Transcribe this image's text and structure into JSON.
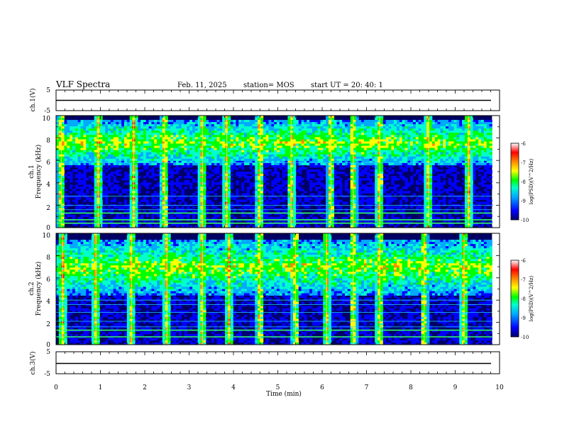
{
  "header": {
    "title": "VLF Spectra",
    "date": "Feb. 11, 2025",
    "station": "station= MOS",
    "start": "start  UT =   20: 40: 1"
  },
  "chart_data": {
    "type": "heatmap",
    "xlabel": "Time  (min)",
    "xlim": [
      0,
      10
    ],
    "xticks": [
      "0",
      "1",
      "2",
      "3",
      "4",
      "5",
      "6",
      "7",
      "8",
      "9",
      "10"
    ],
    "data_end_min": 9.83,
    "panels": [
      {
        "name": "ch1-voltage",
        "ylabel": "ch.1(V)",
        "ylim": [
          -5,
          5
        ],
        "yticks": [
          "5",
          "-5"
        ],
        "type": "line",
        "level": 0
      },
      {
        "name": "ch1-spectrogram",
        "ylabel": "ch.1",
        "ylabel2": "Frequency  (kHz)",
        "ylim": [
          0,
          10
        ],
        "yticks": [
          "0",
          "2",
          "4",
          "6",
          "8",
          "10"
        ],
        "type": "heatmap",
        "main_band_khz": [
          5.5,
          9.6
        ],
        "lines_khz": [
          0.4,
          0.7,
          1.3,
          1.6,
          2.0,
          2.8,
          5.8
        ],
        "strong_events_min": [
          0.12,
          0.95,
          1.75,
          2.45,
          3.3,
          3.85,
          4.6,
          5.3,
          6.2,
          6.7,
          7.3,
          8.4,
          9.3
        ]
      },
      {
        "name": "ch2-spectrogram",
        "ylabel": "ch.2",
        "ylabel2": "Frequency  (kHz)",
        "ylim": [
          0,
          10
        ],
        "yticks": [
          "0",
          "2",
          "4",
          "6",
          "8",
          "10"
        ],
        "type": "heatmap",
        "main_band_khz": [
          4.5,
          9.4
        ],
        "lines_khz": [
          0.7,
          1.3,
          1.6,
          2.1,
          2.9,
          3.6,
          4.0
        ],
        "strong_events_min": [
          0.15,
          0.9,
          1.7,
          2.5,
          3.3,
          3.9,
          4.6,
          5.4,
          6.1,
          6.7,
          7.3,
          8.3,
          9.2
        ]
      },
      {
        "name": "ch3-voltage",
        "ylabel": "ch.3(V)",
        "ylim": [
          -5,
          5
        ],
        "yticks": [
          "5",
          "-5"
        ],
        "type": "line",
        "level": 0
      }
    ],
    "colorbar": {
      "label": "log(PSD)(V^2/Hz)",
      "range": [
        -10,
        -6
      ],
      "ticks": [
        "-6",
        "-7",
        "-8",
        "-9",
        "-10"
      ],
      "colors": [
        "#000066",
        "#0000ff",
        "#00aaff",
        "#00ffcc",
        "#00ff00",
        "#ffff00",
        "#ff8800",
        "#ff0000",
        "#ffffff"
      ]
    }
  }
}
